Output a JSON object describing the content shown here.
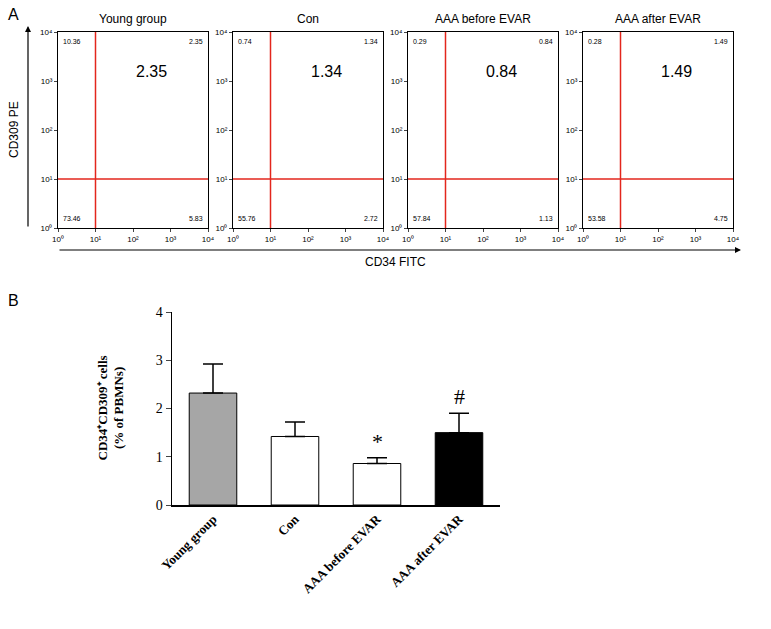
{
  "chart_data": [
    {
      "type": "flow_quadrants",
      "panel": "A",
      "x_label": "CD34 FITC",
      "y_label": "CD309 PE",
      "xlim": [
        0,
        4
      ],
      "ylim": [
        0,
        4
      ],
      "xticks": [
        {
          "value": 0,
          "label": "10⁰"
        },
        {
          "value": 1,
          "label": "10¹"
        },
        {
          "value": 2,
          "label": "10²"
        },
        {
          "value": 3,
          "label": "10³"
        },
        {
          "value": 4,
          "label": "10⁴"
        }
      ],
      "yticks": [
        {
          "value": 0,
          "label": "10⁰"
        },
        {
          "value": 1,
          "label": "10¹"
        },
        {
          "value": 2,
          "label": "10²"
        },
        {
          "value": 3,
          "label": "10³"
        },
        {
          "value": 4,
          "label": "10⁴"
        }
      ],
      "gate": {
        "x": 1,
        "y": 1
      },
      "color": "#e3261c",
      "plots": [
        {
          "title": "Young group",
          "highlight": 2.35,
          "quadrants": {
            "upper_left": 10.36,
            "upper_right": 2.35,
            "lower_left": 73.46,
            "lower_right": 5.83
          }
        },
        {
          "title": "Con",
          "highlight": 1.34,
          "quadrants": {
            "upper_left": 0.74,
            "upper_right": 1.34,
            "lower_left": 55.76,
            "lower_right": 2.72
          }
        },
        {
          "title": "AAA before EVAR",
          "highlight": 0.84,
          "quadrants": {
            "upper_left": 0.29,
            "upper_right": 0.84,
            "lower_left": 57.84,
            "lower_right": 1.13
          }
        },
        {
          "title": "AAA after EVAR",
          "highlight": 1.49,
          "quadrants": {
            "upper_left": 0.28,
            "upper_right": 1.49,
            "lower_left": 53.58,
            "lower_right": 4.75
          }
        }
      ]
    },
    {
      "type": "bar",
      "panel": "B",
      "y_label": "CD34⁺CD309⁺ cells (% of PBMNs)",
      "categories": [
        "Young group",
        "Con",
        "AAA before EVAR",
        "AAA after EVAR"
      ],
      "values": [
        2.32,
        1.42,
        0.86,
        1.5
      ],
      "errors": [
        0.6,
        0.3,
        0.12,
        0.4
      ],
      "colors": [
        "#a6a6a6",
        "#ffffff",
        "#ffffff",
        "#000000"
      ],
      "ylim": [
        0,
        4
      ],
      "yticks": [
        0,
        1,
        2,
        3,
        4
      ],
      "grid": false,
      "annotations": [
        {
          "category": "AAA before EVAR",
          "text": "*"
        },
        {
          "category": "AAA after EVAR",
          "text": "#"
        }
      ]
    }
  ]
}
